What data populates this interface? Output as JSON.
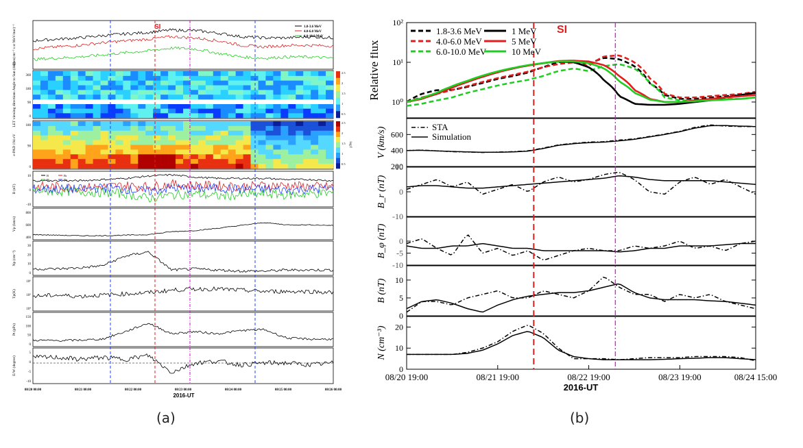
{
  "captions": {
    "a": "(a)",
    "b": "(b)"
  },
  "colors": {
    "blue_line": "#1f3fff",
    "red_line": "#e01e1e",
    "magenta_line": "#e000e0",
    "green": "#22cc22",
    "black": "#000000"
  },
  "chart_data": [
    {
      "type": "line",
      "panel_id": "a",
      "xlabel": "2016-UT",
      "x_ticks": [
        "08/20 00:00",
        "08/21 00:00",
        "08/22 00:00",
        "08/23 00:00",
        "08/24 00:00",
        "08/25 00:00",
        "08/26 00:00"
      ],
      "markers": [
        {
          "label": "SI",
          "x": "08/22 04:00",
          "style": "red-dashed"
        },
        {
          "label": "",
          "x": "08/21 09:00",
          "style": "blue-dashed"
        },
        {
          "label": "",
          "x": "08/22 22:00",
          "style": "magenta-dashdot"
        },
        {
          "label": "",
          "x": "08/24 11:00",
          "style": "blue-dashed"
        }
      ],
      "subpanels": [
        {
          "name": "flux",
          "ylabel": "Flux(cm⁻² s sr MeV/nuc)⁻¹",
          "scale": "log",
          "legend": [
            "1.8-3.6 MeV",
            "4.0-6.0 MeV",
            "6.0-10.0 MeV"
          ],
          "series": [
            {
              "name": "1.8-3.6 MeV",
              "color": "#000000",
              "values": [
                0.05,
                0.06,
                0.07,
                0.09,
                0.11,
                0.13,
                0.17,
                0.16,
                0.12,
                0.08,
                0.07,
                0.07,
                0.08,
                0.07
              ]
            },
            {
              "name": "4.0-6.0 MeV",
              "color": "#e01e1e",
              "values": [
                0.02,
                0.025,
                0.03,
                0.04,
                0.05,
                0.06,
                0.08,
                0.07,
                0.05,
                0.03,
                0.025,
                0.03,
                0.03,
                0.028
              ]
            },
            {
              "name": "6.0-10.0 MeV",
              "color": "#22cc22",
              "values": [
                0.006,
                0.007,
                0.008,
                0.01,
                0.013,
                0.016,
                0.022,
                0.02,
                0.012,
                0.008,
                0.007,
                0.008,
                0.008,
                0.007
              ]
            }
          ]
        },
        {
          "name": "viewing",
          "ylabel": "LET viewing directions Angle to Sun (deg)",
          "colorbar_label": "Differential Flux Normalized to Average Value 1.8-3.6 MeV/nuc Protons",
          "colorbar_ticks": [
            "2.5",
            "2",
            "1.5",
            "1",
            "0.5"
          ],
          "y_ticks": [
            "360",
            "180",
            "90",
            "0"
          ]
        },
        {
          "name": "epad",
          "ylabel": "e-PAD 194 eV",
          "colorbar_label": "log f",
          "colorbar_ticks": [
            "2.5",
            "2",
            "1.5",
            "1",
            "0.5"
          ],
          "y_ticks": [
            "180",
            "90",
            "0"
          ]
        },
        {
          "name": "B",
          "ylabel": "B (nT)",
          "legend": [
            "B",
            "Br",
            "Bt",
            "Bn"
          ],
          "y_ticks": [
            "10",
            "0",
            "-10"
          ]
        },
        {
          "name": "Vp",
          "ylabel": "Vp (km/s)",
          "y_ticks": [
            "800",
            "600",
            "400"
          ],
          "values": [
            390,
            380,
            370,
            370,
            380,
            390,
            440,
            460,
            500,
            550,
            600,
            560,
            560,
            550
          ]
        },
        {
          "name": "Np",
          "ylabel": "Np (cm⁻³)",
          "y_ticks": [
            "30",
            "20",
            "10",
            "0"
          ],
          "values": [
            6,
            6,
            7,
            9,
            18,
            22,
            5,
            6,
            5,
            4,
            4,
            5,
            5,
            5
          ]
        },
        {
          "name": "Tp",
          "ylabel": "Tp(K)",
          "y_ticks": [
            "10⁶",
            "10⁵",
            "10⁴"
          ]
        },
        {
          "name": "Pt",
          "ylabel": "Pt (pPa)",
          "y_ticks": [
            "150",
            "100",
            "50",
            "0"
          ],
          "values": [
            30,
            28,
            30,
            35,
            70,
            110,
            60,
            70,
            60,
            75,
            80,
            40,
            35,
            35
          ]
        },
        {
          "name": "EW",
          "ylabel": "E/W (degree)",
          "y_ticks": [
            "5",
            "0",
            "-5",
            "-10"
          ]
        }
      ]
    },
    {
      "type": "line",
      "panel_id": "b",
      "xlabel": "2016-UT",
      "x_ticks": [
        "08/20 19:00",
        "08/21 19:00",
        "08/22 19:00",
        "08/23 19:00",
        "08/24 15:00"
      ],
      "xlim_hours": [
        0,
        92
      ],
      "markers": [
        {
          "label": "SI",
          "x_hours": 33.5,
          "style": "red-dashed"
        },
        {
          "label": "",
          "x_hours": 55,
          "style": "magenta-dashdot"
        }
      ],
      "x_hours": [
        0,
        4,
        8,
        12,
        16,
        20,
        24,
        28,
        32,
        36,
        40,
        44,
        48,
        52,
        56,
        60,
        64,
        68,
        72,
        76,
        80,
        84,
        88,
        92
      ],
      "subpanels": [
        {
          "name": "flux",
          "ylabel": "Relative flux",
          "scale": "log",
          "ylim": [
            0.4,
            100
          ],
          "y_ticks": [
            "10²",
            "10¹",
            "10⁰"
          ],
          "series": [
            {
              "name": "1.8-3.6 MeV",
              "color": "#000000",
              "style": "dashed",
              "values": [
                1.0,
                1.6,
                2.0,
                2.0,
                2.4,
                3.0,
                3.8,
                4.5,
                5.5,
                7.5,
                10,
                11,
                9,
                13,
                12,
                8,
                3,
                1.5,
                1.2,
                1.2,
                1.3,
                1.4,
                1.5,
                1.7
              ]
            },
            {
              "name": "4.0-6.0 MeV",
              "color": "#e01e1e",
              "style": "dashed",
              "values": [
                1.0,
                1.3,
                1.6,
                2.0,
                2.5,
                3.2,
                4.0,
                4.8,
                5.8,
                7.5,
                9,
                10,
                8,
                14,
                15,
                10,
                4,
                1.6,
                1.3,
                1.3,
                1.4,
                1.5,
                1.6,
                1.8
              ]
            },
            {
              "name": "6.0-10.0 MeV",
              "color": "#22cc22",
              "style": "dashed",
              "values": [
                0.8,
                0.9,
                1.1,
                1.3,
                1.7,
                2.1,
                2.6,
                3.1,
                3.6,
                4.5,
                6,
                7,
                6,
                8,
                9,
                7,
                3,
                1.3,
                1.1,
                1.1,
                1.1,
                1.2,
                1.2,
                1.3
              ]
            },
            {
              "name": "1 MeV",
              "color": "#000000",
              "style": "solid",
              "values": [
                1.0,
                1.2,
                1.6,
                2.3,
                3.2,
                4.3,
                5.6,
                7.0,
                8.3,
                9.5,
                10.5,
                10.0,
                7.5,
                3.5,
                1.4,
                0.9,
                0.85,
                0.85,
                0.9,
                1.0,
                1.1,
                1.3,
                1.5,
                1.7
              ]
            },
            {
              "name": "5 MeV",
              "color": "#e01e1e",
              "style": "solid",
              "values": [
                1.0,
                1.2,
                1.6,
                2.3,
                3.2,
                4.3,
                5.6,
                7.0,
                8.3,
                9.5,
                10.8,
                11.0,
                10.5,
                8.5,
                4.5,
                2.0,
                1.2,
                1.0,
                1.0,
                1.1,
                1.2,
                1.3,
                1.4,
                1.5
              ]
            },
            {
              "name": "10 MeV",
              "color": "#22cc22",
              "style": "solid",
              "values": [
                1.0,
                1.25,
                1.7,
                2.5,
                3.4,
                4.6,
                5.9,
                7.2,
                8.5,
                9.6,
                10.5,
                10.5,
                9.5,
                7.0,
                3.3,
                1.7,
                1.15,
                1.0,
                1.0,
                1.05,
                1.1,
                1.15,
                1.2,
                1.3
              ]
            }
          ]
        },
        {
          "name": "V",
          "ylabel": "V (km/s)",
          "ylim": [
            200,
            800
          ],
          "y_ticks": [
            "200",
            "400",
            "600"
          ],
          "legend": [
            "STA",
            "Simulation"
          ],
          "series": [
            {
              "name": "STA",
              "style": "dashdot",
              "values": [
                400,
                405,
                395,
                385,
                380,
                375,
                380,
                385,
                395,
                430,
                470,
                490,
                505,
                510,
                530,
                545,
                575,
                605,
                640,
                690,
                720,
                705,
                700,
                700
              ]
            },
            {
              "name": "Simulation",
              "style": "solid",
              "values": [
                400,
                402,
                395,
                388,
                382,
                378,
                378,
                382,
                392,
                425,
                465,
                485,
                498,
                505,
                520,
                540,
                570,
                600,
                635,
                680,
                710,
                712,
                705,
                700
              ]
            }
          ]
        },
        {
          "name": "Br",
          "ylabel": "B_r (nT)",
          "ylim": [
            -10,
            10
          ],
          "y_ticks": [
            "10",
            "0",
            "-10"
          ],
          "series": [
            {
              "name": "STA",
              "style": "dashdot",
              "values": [
                1,
                3,
                5,
                2,
                4,
                -1,
                1,
                3,
                0,
                4,
                6,
                4,
                5,
                7,
                8,
                5,
                0,
                -1,
                4,
                6,
                3,
                5,
                2,
                -1
              ]
            },
            {
              "name": "Simulation",
              "style": "solid",
              "values": [
                2,
                2.5,
                2.5,
                2,
                1.5,
                1.5,
                2,
                2.5,
                3,
                3.5,
                4,
                4.5,
                5,
                5.5,
                6.5,
                6,
                5,
                4.5,
                4.5,
                4.5,
                4.5,
                4,
                3.5,
                3
              ]
            }
          ]
        },
        {
          "name": "Bphi",
          "ylabel": "B_φ (nT)",
          "ylim": [
            -10,
            10
          ],
          "y_ticks": [
            "0",
            "-5",
            "-10"
          ],
          "series": [
            {
              "name": "STA",
              "style": "dashdot",
              "values": [
                -1,
                1,
                -3,
                -6,
                3,
                -5,
                -3,
                -6,
                -4,
                -8,
                -6,
                -4,
                -3,
                -4,
                -4,
                -2,
                -3,
                -2,
                0,
                -3,
                -2,
                -4,
                -1,
                0
              ]
            },
            {
              "name": "Simulation",
              "style": "solid",
              "values": [
                -2,
                -3,
                -3,
                -2,
                -2,
                -1,
                -2,
                -3,
                -3,
                -4,
                -4,
                -4,
                -4,
                -4,
                -4.5,
                -4,
                -3,
                -3,
                -2,
                -2,
                -2,
                -1.5,
                -1,
                -1
              ]
            }
          ]
        },
        {
          "name": "B",
          "ylabel": "B (nT)",
          "ylim": [
            0,
            14
          ],
          "y_ticks": [
            "10",
            "5",
            "0"
          ],
          "series": [
            {
              "name": "STA",
              "style": "dashdot",
              "values": [
                1,
                4,
                4,
                3,
                5,
                6,
                7,
                5,
                5,
                7,
                6,
                5,
                7,
                11,
                8,
                6,
                6,
                4,
                6,
                5,
                6,
                4,
                3,
                2
              ]
            },
            {
              "name": "Simulation",
              "style": "solid",
              "values": [
                2,
                4,
                4.5,
                3.5,
                2,
                1,
                3,
                4.5,
                5.5,
                6,
                6.5,
                6.5,
                7,
                8,
                9,
                6.5,
                5,
                4.5,
                4.5,
                4.5,
                4.2,
                4,
                3.5,
                3
              ]
            }
          ]
        },
        {
          "name": "N",
          "ylabel": "N (cm⁻³)",
          "ylim": [
            0,
            25
          ],
          "y_ticks": [
            "20",
            "10",
            "0"
          ],
          "series": [
            {
              "name": "STA",
              "style": "dashdot",
              "values": [
                7,
                7,
                7,
                7,
                8,
                10,
                13,
                18,
                21,
                17,
                10,
                5,
                5,
                5,
                4.5,
                5,
                5.5,
                5.5,
                5.5,
                6,
                6,
                6,
                5.5,
                4
              ]
            },
            {
              "name": "Simulation",
              "style": "solid",
              "values": [
                7,
                7,
                7,
                7,
                7.5,
                9,
                12,
                16,
                18,
                15,
                9,
                6,
                5,
                4.5,
                4.5,
                4.5,
                4.5,
                4.7,
                5,
                5.2,
                5.5,
                5.5,
                5,
                4.5
              ]
            }
          ]
        }
      ],
      "legend_flux": {
        "dashed": [
          "1.8-3.6 MeV",
          "4.0-6.0 MeV",
          "6.0-10.0 MeV"
        ],
        "solid": [
          "1 MeV",
          "5 MeV",
          "10 MeV"
        ]
      }
    }
  ]
}
